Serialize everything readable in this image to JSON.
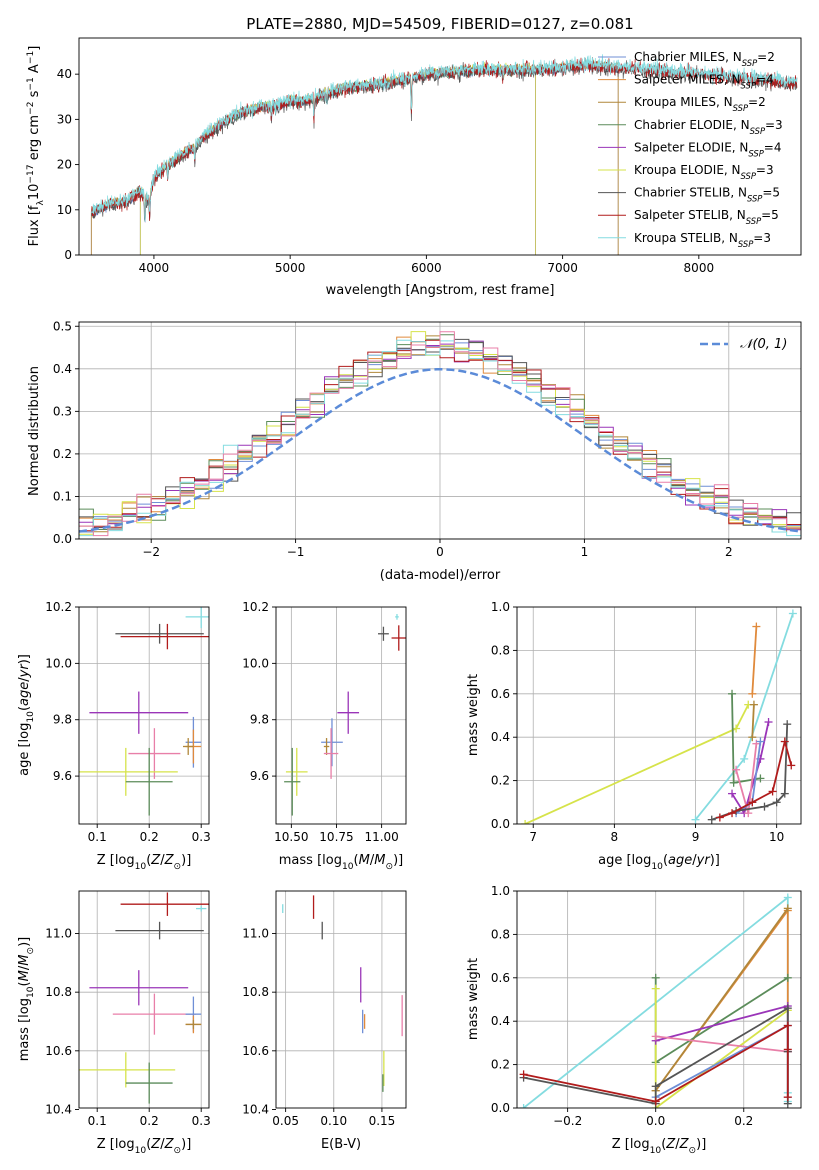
{
  "figure_title": "PLATE=2880, MJD=54509, FIBERID=0127, z=0.081",
  "colors": {
    "Chabrier MILES": "#6f8fd6",
    "Salpeter MILES": "#e08a3c",
    "Kroupa MILES": "#b0873a",
    "Chabrier ELODIE": "#5b8c5a",
    "Salpeter ELODIE": "#9a35b8",
    "Kroupa ELODIE": "#d6e34a",
    "Chabrier STELIB": "#555555",
    "Salpeter STELIB": "#b11c1c",
    "Kroupa STELIB": "#84dce0",
    "pink": "#e87fa8",
    "normal": "#5b8bd8"
  },
  "chart_data": [
    {
      "id": "spectrum",
      "type": "line",
      "xlabel": "wavelength [Angstrom, rest frame]",
      "ylabel": "Flux [f_λ10^-17 erg cm^-2 s^-1 A^-1]",
      "xlim": [
        3450,
        8750
      ],
      "ylim": [
        0,
        48
      ],
      "xticks": [
        4000,
        5000,
        6000,
        7000,
        8000
      ],
      "yticks": [
        0,
        10,
        20,
        30,
        40
      ],
      "legend": "upper right",
      "legend_entries": [
        {
          "model": "Chabrier MILES",
          "label": "Chabrier MILES, N",
          "sub": "SSP",
          "n": "=2"
        },
        {
          "model": "Salpeter MILES",
          "label": "Salpeter MILES, N",
          "sub": "SSP",
          "n": "=4"
        },
        {
          "model": "Kroupa MILES",
          "label": "Kroupa MILES, N",
          "sub": "SSP",
          "n": "=2"
        },
        {
          "model": "Chabrier ELODIE",
          "label": "Chabrier ELODIE, N",
          "sub": "SSP",
          "n": "=3"
        },
        {
          "model": "Salpeter ELODIE",
          "label": "Salpeter ELODIE, N",
          "sub": "SSP",
          "n": "=4"
        },
        {
          "model": "Kroupa ELODIE",
          "label": "Kroupa ELODIE, N",
          "sub": "SSP",
          "n": "=3"
        },
        {
          "model": "Chabrier STELIB",
          "label": "Chabrier STELIB, N",
          "sub": "SSP",
          "n": "=5"
        },
        {
          "model": "Salpeter STELIB",
          "label": "Salpeter STELIB, N",
          "sub": "SSP",
          "n": "=5"
        },
        {
          "model": "Kroupa STELIB",
          "label": "Kroupa STELIB, N",
          "sub": "SSP",
          "n": "=3"
        }
      ],
      "continuum_anchor_points": {
        "wavelength": [
          3520,
          3650,
          3800,
          3900,
          3960,
          4000,
          4100,
          4200,
          4300,
          4400,
          4500,
          4600,
          4700,
          4800,
          4900,
          5000,
          5100,
          5200,
          5300,
          5400,
          5600,
          5800,
          6000,
          6200,
          6400,
          6600,
          6800,
          7000,
          7200,
          7400,
          7600,
          7800,
          8000,
          8200,
          8400,
          8700
        ],
        "flux": [
          9,
          11,
          12,
          14,
          12,
          17,
          20,
          22,
          24,
          27,
          29,
          31,
          32,
          33,
          33,
          34,
          34,
          35,
          36,
          37,
          37.5,
          38.5,
          40,
          40.5,
          41,
          41,
          41,
          41.5,
          42,
          41.5,
          41,
          40.5,
          40,
          39.5,
          39,
          38
        ]
      },
      "series_wavelength_range": {
        "MILES": [
          3540,
          7410
        ],
        "ELODIE": [
          3900,
          6800
        ],
        "STELIB": [
          3540,
          8720
        ]
      }
    },
    {
      "id": "residual-histogram",
      "type": "histogram",
      "xlabel": "(data-model)/error",
      "ylabel": "Normed distribution",
      "xlim": [
        -2.5,
        2.5
      ],
      "ylim": [
        0,
        0.51
      ],
      "xticks": [
        -2,
        -1,
        0,
        1,
        2
      ],
      "yticks": [
        0.0,
        0.1,
        0.2,
        0.3,
        0.4,
        0.5
      ],
      "grid": true,
      "reference": {
        "label": "N(0,1)",
        "mean": 0,
        "sigma": 1,
        "style": "dashed"
      },
      "bin_width": 0.1
    },
    {
      "id": "age-vs-Z",
      "type": "errorbar",
      "xlabel": "Z [log10(Z/Z⊙)]",
      "ylabel": "age [log10(age/yr)]",
      "xlim": [
        0.065,
        0.315
      ],
      "ylim": [
        9.43,
        10.2
      ],
      "xticks": [
        0.1,
        0.2,
        0.3
      ],
      "yticks": [
        9.6,
        9.8,
        10.0,
        10.2
      ],
      "grid": true,
      "points": [
        {
          "model": "Kroupa STELIB",
          "x": 0.3,
          "xerr": 0.03,
          "y": 10.165,
          "yerr": 0.04
        },
        {
          "model": "Chabrier STELIB",
          "x": 0.22,
          "xerr": 0.085,
          "y": 10.105,
          "yerr": 0.035
        },
        {
          "model": "Salpeter STELIB",
          "x": 0.235,
          "xerr": 0.09,
          "y": 10.095,
          "yerr": 0.045
        },
        {
          "model": "Salpeter ELODIE",
          "x": 0.18,
          "xerr": 0.095,
          "y": 9.825,
          "yerr": 0.075
        },
        {
          "model": "Chabrier MILES",
          "x": 0.285,
          "xerr": 0.015,
          "y": 9.72,
          "yerr": 0.09
        },
        {
          "model": "Salpeter MILES",
          "x": 0.285,
          "xerr": 0.015,
          "y": 9.705,
          "yerr": 0.06
        },
        {
          "model": "Kroupa MILES",
          "x": 0.275,
          "xerr": 0.01,
          "y": 9.705,
          "yerr": 0.03
        },
        {
          "model": "pink",
          "x": 0.21,
          "xerr": 0.05,
          "y": 9.68,
          "yerr": 0.09
        },
        {
          "model": "Kroupa ELODIE",
          "x": 0.155,
          "xerr": 0.1,
          "y": 9.615,
          "yerr": 0.085
        },
        {
          "model": "Chabrier ELODIE",
          "x": 0.2,
          "xerr": 0.045,
          "y": 9.58,
          "yerr": 0.12
        }
      ]
    },
    {
      "id": "age-vs-mass",
      "type": "errorbar",
      "xlabel": "mass [log10(M/M⊙)]",
      "ylabel": "",
      "xlim": [
        10.415,
        11.135
      ],
      "ylim": [
        9.43,
        10.2
      ],
      "xticks": [
        10.5,
        10.75,
        11.0
      ],
      "xticklabels": [
        "10.50",
        "10.75",
        "11.00"
      ],
      "yticks": [
        9.6,
        9.8,
        10.0,
        10.2
      ],
      "grid": true,
      "points": [
        {
          "model": "Kroupa STELIB",
          "x": 11.085,
          "xerr": 0.01,
          "y": 10.165,
          "yerr": 0.01
        },
        {
          "model": "Chabrier STELIB",
          "x": 11.01,
          "xerr": 0.03,
          "y": 10.105,
          "yerr": 0.025
        },
        {
          "model": "Salpeter STELIB",
          "x": 11.095,
          "xerr": 0.04,
          "y": 10.09,
          "yerr": 0.045
        },
        {
          "model": "Salpeter ELODIE",
          "x": 10.815,
          "xerr": 0.06,
          "y": 9.825,
          "yerr": 0.075
        },
        {
          "model": "Chabrier MILES",
          "x": 10.725,
          "xerr": 0.06,
          "y": 9.72,
          "yerr": 0.085
        },
        {
          "model": "Kroupa MILES",
          "x": 10.695,
          "xerr": 0.015,
          "y": 9.705,
          "yerr": 0.03
        },
        {
          "model": "pink",
          "x": 10.72,
          "xerr": 0.04,
          "y": 9.68,
          "yerr": 0.09
        },
        {
          "model": "Kroupa ELODIE",
          "x": 10.53,
          "xerr": 0.06,
          "y": 9.615,
          "yerr": 0.085
        },
        {
          "model": "Chabrier ELODIE",
          "x": 10.505,
          "xerr": 0.045,
          "y": 9.58,
          "yerr": 0.12
        }
      ]
    },
    {
      "id": "weight-vs-age",
      "type": "line",
      "xlabel": "age [log10(age/yr)]",
      "ylabel": "mass weight",
      "xlim": [
        6.8,
        10.3
      ],
      "ylim": [
        0,
        1
      ],
      "xticks": [
        7,
        8,
        9,
        10
      ],
      "yticks": [
        0.0,
        0.2,
        0.4,
        0.6,
        0.8,
        1.0
      ],
      "grid": true,
      "series": [
        {
          "model": "Kroupa ELODIE",
          "x": [
            6.9,
            9.5,
            9.65
          ],
          "y": [
            0.0,
            0.44,
            0.55
          ]
        },
        {
          "model": "Kroupa STELIB",
          "x": [
            9.0,
            9.6,
            10.2
          ],
          "y": [
            0.02,
            0.3,
            0.97
          ]
        },
        {
          "model": "Salpeter MILES",
          "x": [
            9.7,
            9.75
          ],
          "y": [
            0.6,
            0.91
          ]
        },
        {
          "model": "Kroupa MILES",
          "x": [
            9.7,
            9.72
          ],
          "y": [
            0.4,
            0.55
          ]
        },
        {
          "model": "Chabrier ELODIE",
          "x": [
            9.45,
            9.47,
            9.8
          ],
          "y": [
            0.6,
            0.19,
            0.21
          ]
        },
        {
          "model": "Salpeter ELODIE",
          "x": [
            9.45,
            9.6,
            9.8,
            9.9
          ],
          "y": [
            0.14,
            0.05,
            0.3,
            0.47
          ]
        },
        {
          "model": "pink",
          "x": [
            9.5,
            9.65,
            9.75
          ],
          "y": [
            0.25,
            0.05,
            0.37
          ]
        },
        {
          "model": "Chabrier MILES",
          "x": [
            9.5,
            9.7,
            9.8
          ],
          "y": [
            0.05,
            0.1,
            0.38
          ]
        },
        {
          "model": "Chabrier STELIB",
          "x": [
            9.2,
            9.5,
            9.85,
            10.0,
            10.1,
            10.13
          ],
          "y": [
            0.02,
            0.06,
            0.08,
            0.1,
            0.14,
            0.46
          ]
        },
        {
          "model": "Salpeter STELIB",
          "x": [
            9.3,
            9.45,
            9.7,
            9.95,
            10.1,
            10.18
          ],
          "y": [
            0.03,
            0.05,
            0.1,
            0.15,
            0.38,
            0.27
          ]
        }
      ]
    },
    {
      "id": "mass-vs-Z",
      "type": "errorbar",
      "xlabel": "Z [log10(Z/Z⊙)]",
      "ylabel": "mass [log10(M/M⊙)]",
      "xlim": [
        0.065,
        0.315
      ],
      "ylim": [
        10.405,
        11.145
      ],
      "xticks": [
        0.1,
        0.2,
        0.3
      ],
      "yticks": [
        10.4,
        10.6,
        10.8,
        11.0
      ],
      "grid": true,
      "points": [
        {
          "model": "Kroupa STELIB",
          "x": 0.3,
          "xerr": 0.01,
          "y": 11.085,
          "yerr": 0.01
        },
        {
          "model": "Salpeter STELIB",
          "x": 0.235,
          "xerr": 0.09,
          "y": 11.1,
          "yerr": 0.04
        },
        {
          "model": "Chabrier STELIB",
          "x": 0.22,
          "xerr": 0.085,
          "y": 11.01,
          "yerr": 0.03
        },
        {
          "model": "Salpeter ELODIE",
          "x": 0.18,
          "xerr": 0.095,
          "y": 10.815,
          "yerr": 0.06
        },
        {
          "model": "pink",
          "x": 0.21,
          "xerr": 0.08,
          "y": 10.725,
          "yerr": 0.07
        },
        {
          "model": "Chabrier MILES",
          "x": 0.285,
          "xerr": 0.015,
          "y": 10.725,
          "yerr": 0.06
        },
        {
          "model": "Salpeter MILES",
          "x": 0.285,
          "xerr": 0.015,
          "y": 10.69,
          "yerr": 0.03
        },
        {
          "model": "Kroupa MILES",
          "x": 0.285,
          "xerr": 0.015,
          "y": 10.69,
          "yerr": 0.015
        },
        {
          "model": "Kroupa ELODIE",
          "x": 0.155,
          "xerr": 0.095,
          "y": 10.535,
          "yerr": 0.06
        },
        {
          "model": "Chabrier ELODIE",
          "x": 0.2,
          "xerr": 0.045,
          "y": 10.49,
          "yerr": 0.07
        }
      ]
    },
    {
      "id": "mass-vs-EBV",
      "type": "errorbar",
      "xlabel": "E(B-V)",
      "ylabel": "",
      "xlim": [
        0.04,
        0.175
      ],
      "ylim": [
        10.405,
        11.145
      ],
      "xticks": [
        0.05,
        0.1,
        0.15
      ],
      "yticks": [
        10.4,
        10.6,
        10.8,
        11.0
      ],
      "grid": true,
      "points": [
        {
          "model": "Kroupa STELIB",
          "x": 0.047,
          "xerr": 0.0,
          "y": 11.085,
          "yerr": 0.015
        },
        {
          "model": "Salpeter STELIB",
          "x": 0.079,
          "xerr": 0.0,
          "y": 11.09,
          "yerr": 0.04
        },
        {
          "model": "Chabrier STELIB",
          "x": 0.088,
          "xerr": 0.0,
          "y": 11.01,
          "yerr": 0.03
        },
        {
          "model": "Salpeter ELODIE",
          "x": 0.128,
          "xerr": 0.0,
          "y": 10.825,
          "yerr": 0.06
        },
        {
          "model": "Chabrier MILES",
          "x": 0.13,
          "xerr": 0.0,
          "y": 10.7,
          "yerr": 0.04
        },
        {
          "model": "Salpeter MILES",
          "x": 0.132,
          "xerr": 0.0,
          "y": 10.7,
          "yerr": 0.025
        },
        {
          "model": "pink",
          "x": 0.171,
          "xerr": 0.0,
          "y": 10.72,
          "yerr": 0.07
        },
        {
          "model": "Kroupa ELODIE",
          "x": 0.152,
          "xerr": 0.0,
          "y": 10.54,
          "yerr": 0.06
        },
        {
          "model": "Chabrier ELODIE",
          "x": 0.151,
          "xerr": 0.0,
          "y": 10.49,
          "yerr": 0.03
        }
      ]
    },
    {
      "id": "weight-vs-Z",
      "type": "line",
      "xlabel": "Z [log10(Z/Z⊙)]",
      "ylabel": "mass weight",
      "xlim": [
        -0.315,
        0.33
      ],
      "ylim": [
        0,
        1
      ],
      "xticks": [
        -0.2,
        0.0,
        0.2
      ],
      "xticklabels": [
        "−0.2",
        "0.0",
        "0.2"
      ],
      "yticks": [
        0.0,
        0.2,
        0.4,
        0.6,
        0.8,
        1.0
      ],
      "grid": true,
      "series": [
        {
          "model": "Kroupa STELIB",
          "x": [
            -0.3,
            0.3,
            0.3,
            0.3
          ],
          "y": [
            0.0,
            0.97,
            0.07,
            0.03
          ]
        },
        {
          "model": "Salpeter MILES",
          "x": [
            0.0,
            0.3,
            0.3
          ],
          "y": [
            0.08,
            0.91,
            0.26
          ]
        },
        {
          "model": "Kroupa MILES",
          "x": [
            0.0,
            0.3
          ],
          "y": [
            0.08,
            0.92
          ]
        },
        {
          "model": "Chabrier ELODIE",
          "x": [
            0.0,
            0.0,
            0.3
          ],
          "y": [
            0.6,
            0.21,
            0.6
          ]
        },
        {
          "model": "Kroupa ELODIE",
          "x": [
            0.0,
            0.0,
            0.3
          ],
          "y": [
            0.55,
            0.0,
            0.45
          ]
        },
        {
          "model": "Salpeter ELODIE",
          "x": [
            0.0,
            0.3,
            0.3
          ],
          "y": [
            0.31,
            0.47,
            0.26
          ]
        },
        {
          "model": "pink",
          "x": [
            0.0,
            0.3
          ],
          "y": [
            0.33,
            0.26
          ]
        },
        {
          "model": "Chabrier MILES",
          "x": [
            0.0,
            0.3,
            0.3
          ],
          "y": [
            0.05,
            0.38,
            0.05
          ]
        },
        {
          "model": "Chabrier STELIB",
          "x": [
            -0.3,
            0.0,
            0.0,
            0.3,
            0.3,
            0.3
          ],
          "y": [
            0.14,
            0.02,
            0.1,
            0.46,
            0.26,
            0.02
          ]
        },
        {
          "model": "Salpeter STELIB",
          "x": [
            -0.3,
            0.0,
            0.3,
            0.3,
            0.3
          ],
          "y": [
            0.155,
            0.03,
            0.38,
            0.27,
            0.05
          ]
        }
      ]
    }
  ]
}
